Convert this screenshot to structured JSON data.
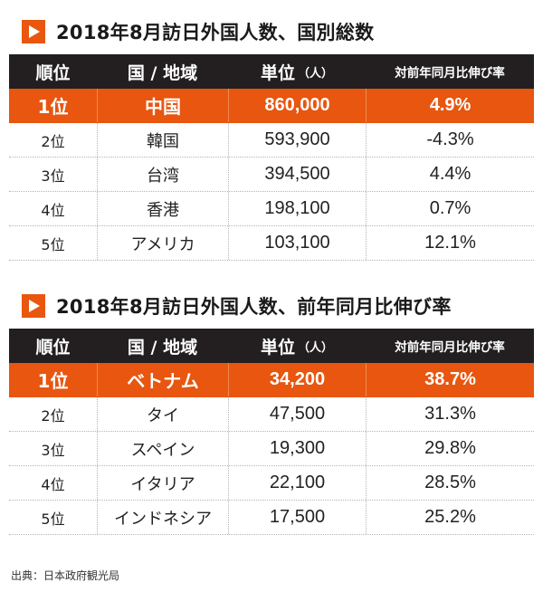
{
  "colors": {
    "accent": "#e8560f",
    "header_bg": "#231f20"
  },
  "sections": [
    {
      "title": "2018年8月訪日外国人数、国別総数",
      "headers": {
        "rank": "順位",
        "country": "国 / 地域",
        "unit": "単位",
        "unit_sub": "（人）",
        "yoy": "対前年同月比伸び率"
      },
      "rows": [
        {
          "rank": "1位",
          "country": "中国",
          "visitors": "860,000",
          "yoy": "4.9%"
        },
        {
          "rank": "2位",
          "country": "韓国",
          "visitors": "593,900",
          "yoy": "-4.3%"
        },
        {
          "rank": "3位",
          "country": "台湾",
          "visitors": "394,500",
          "yoy": "4.4%"
        },
        {
          "rank": "4位",
          "country": "香港",
          "visitors": "198,100",
          "yoy": "0.7%"
        },
        {
          "rank": "5位",
          "country": "アメリカ",
          "visitors": "103,100",
          "yoy": "12.1%"
        }
      ]
    },
    {
      "title": "2018年8月訪日外国人数、前年同月比伸び率",
      "headers": {
        "rank": "順位",
        "country": "国 / 地域",
        "unit": "単位",
        "unit_sub": "（人）",
        "yoy": "対前年同月比伸び率"
      },
      "rows": [
        {
          "rank": "1位",
          "country": "ベトナム",
          "visitors": "34,200",
          "yoy": "38.7%"
        },
        {
          "rank": "2位",
          "country": "タイ",
          "visitors": "47,500",
          "yoy": "31.3%"
        },
        {
          "rank": "3位",
          "country": "スペイン",
          "visitors": "19,300",
          "yoy": "29.8%"
        },
        {
          "rank": "4位",
          "country": "イタリア",
          "visitors": "22,100",
          "yoy": "28.5%"
        },
        {
          "rank": "5位",
          "country": "インドネシア",
          "visitors": "17,500",
          "yoy": "25.2%"
        }
      ]
    }
  ],
  "source": "出典：日本政府観光局"
}
